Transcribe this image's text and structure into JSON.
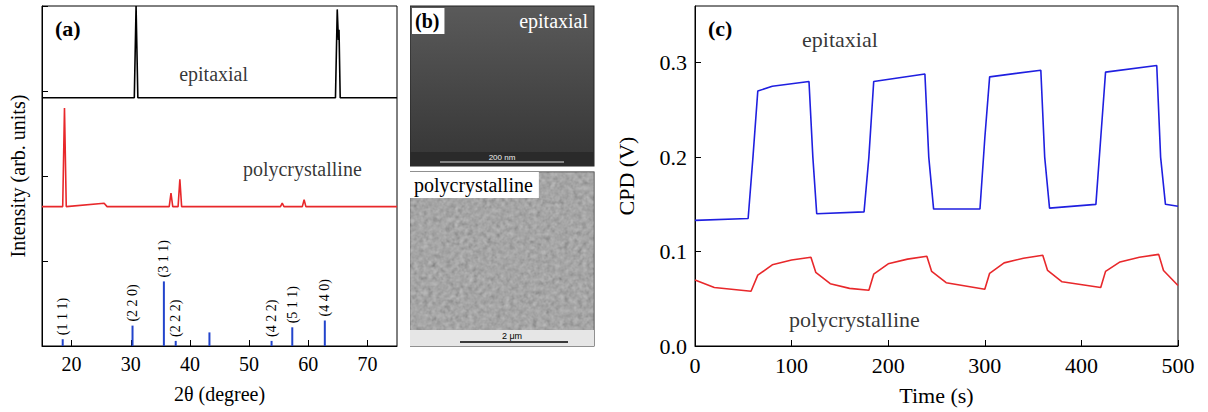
{
  "chart_data": [
    {
      "type": "line",
      "title": "(a)",
      "xlabel": "2θ (degree)",
      "ylabel": "Intensity (arb. units)",
      "xlim": [
        15,
        75
      ],
      "xticks": [
        20,
        30,
        40,
        50,
        60,
        70
      ],
      "ylim": [
        0,
        100
      ],
      "yticks": [
        0,
        25,
        50,
        75,
        100
      ],
      "tick_labels": "x",
      "grid": false,
      "series": [
        {
          "color": "#000000",
          "x": [
            15,
            30.6,
            30.9,
            31.2,
            64.6,
            64.9,
            65.1,
            65.2,
            65.4,
            75
          ],
          "values": [
            73,
            73,
            100,
            73,
            73,
            99,
            90,
            93,
            73,
            73
          ]
        },
        {
          "color": "#e8282b",
          "x": [
            15,
            18.5,
            18.8,
            19.1,
            25.5,
            26,
            36.5,
            36.8,
            37.1,
            38,
            38.3,
            38.6,
            55.3,
            55.6,
            55.9,
            59,
            59.3,
            59.6,
            75
          ],
          "values": [
            41,
            41,
            70,
            41,
            42,
            41,
            41,
            45,
            41,
            41,
            49,
            41,
            41,
            42,
            41,
            41,
            43,
            41,
            41
          ]
        },
        {
          "type": "bar",
          "color": "#2244cc",
          "x": [
            18.5,
            30.3,
            35.6,
            37.6,
            43.3,
            53.8,
            57.3,
            62.8
          ],
          "values": [
            2,
            6,
            19,
            1.5,
            4,
            1.5,
            5.5,
            7.5
          ],
          "labels": [
            "(1 1 1)",
            "(2 2 0)",
            "(3 1 1)",
            "(2 2 2)",
            null,
            "(4 2 2)",
            "(5 1 1)",
            "(4 4 0)"
          ]
        }
      ],
      "annotations": [
        {
          "text": "epitaxial",
          "x": 44,
          "y": 80
        },
        {
          "text": "polycrystalline",
          "x": 59,
          "y": 52
        }
      ]
    },
    {
      "type": "image",
      "title": "(b)",
      "images": [
        {
          "label": "epitaxial",
          "scale_bar": "200 nm"
        },
        {
          "label": "polycrystalline",
          "scale_bar": "2 μm"
        }
      ]
    },
    {
      "type": "line",
      "title": "(c)",
      "xlabel": "Time (s)",
      "ylabel": "CPD (V)",
      "xlim": [
        0,
        500
      ],
      "xticks": [
        0,
        100,
        200,
        300,
        400,
        500
      ],
      "ylim": [
        0,
        0.36
      ],
      "yticks": [
        {
          "value": 0,
          "label": "0.0"
        },
        0.1,
        0.2,
        0.3
      ],
      "grid": false,
      "series": [
        {
          "color": "#1f1fe0",
          "x": [
            0,
            55,
            60,
            65,
            80,
            118,
            122,
            126,
            175,
            180,
            185,
            238,
            242,
            247,
            295,
            300,
            305,
            358,
            362,
            367,
            415,
            420,
            425,
            478,
            482,
            487,
            500
          ],
          "values": [
            0.133,
            0.135,
            0.2,
            0.27,
            0.275,
            0.28,
            0.2,
            0.14,
            0.142,
            0.2,
            0.28,
            0.288,
            0.2,
            0.145,
            0.145,
            0.22,
            0.285,
            0.292,
            0.2,
            0.146,
            0.15,
            0.22,
            0.29,
            0.297,
            0.2,
            0.15,
            0.148
          ]
        },
        {
          "color": "#e8282b",
          "x": [
            0,
            20,
            58,
            65,
            80,
            100,
            120,
            125,
            140,
            160,
            180,
            185,
            200,
            220,
            240,
            245,
            260,
            300,
            305,
            320,
            340,
            360,
            365,
            380,
            420,
            425,
            440,
            460,
            480,
            485,
            500
          ],
          "values": [
            0.07,
            0.062,
            0.058,
            0.075,
            0.086,
            0.091,
            0.094,
            0.078,
            0.066,
            0.061,
            0.059,
            0.076,
            0.087,
            0.092,
            0.095,
            0.079,
            0.067,
            0.06,
            0.077,
            0.088,
            0.093,
            0.096,
            0.08,
            0.068,
            0.062,
            0.079,
            0.089,
            0.094,
            0.097,
            0.08,
            0.064
          ]
        }
      ],
      "annotations": [
        {
          "text": "epitaxial",
          "x": 150,
          "y": 0.325
        },
        {
          "text": "polycrystalline",
          "x": 165,
          "y": 0.028
        }
      ]
    }
  ]
}
